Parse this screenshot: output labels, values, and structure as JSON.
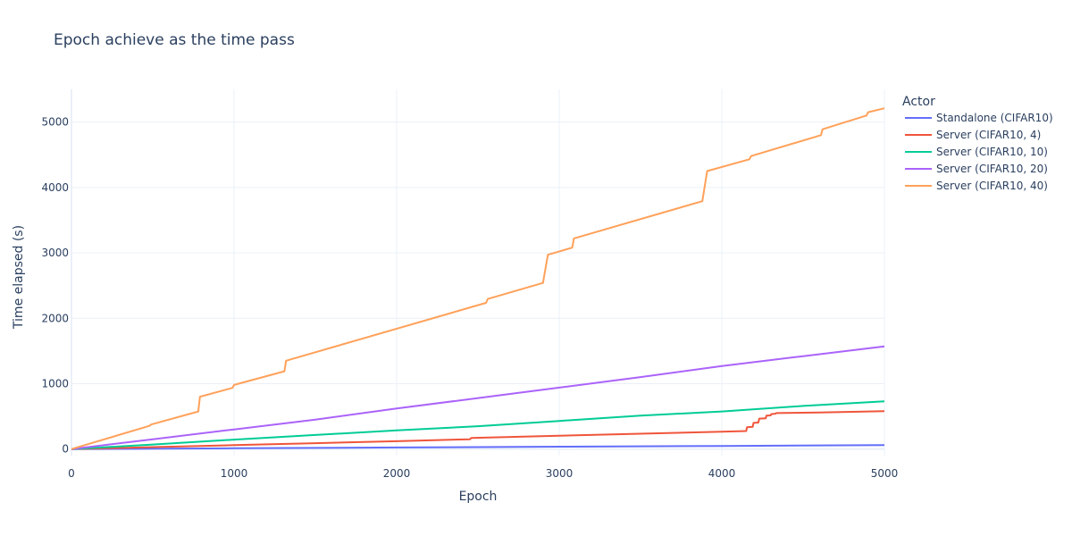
{
  "chart_data": {
    "type": "line",
    "title": "Epoch achieve as the time pass",
    "xlabel": "Epoch",
    "ylabel": "Time elapsed (s)",
    "xlim": [
      0,
      5000
    ],
    "ylim": [
      -100,
      5500
    ],
    "x_ticks": [
      0,
      1000,
      2000,
      3000,
      4000,
      5000
    ],
    "y_ticks": [
      0,
      1000,
      2000,
      3000,
      4000,
      5000
    ],
    "grid": true,
    "legend": {
      "title": "Actor",
      "placement": "right"
    },
    "series": [
      {
        "name": "Standalone (CIFAR10)",
        "color": "#636efa",
        "x": [
          0,
          1000,
          2000,
          3000,
          4000,
          5000
        ],
        "y": [
          0,
          12,
          24,
          36,
          48,
          60
        ]
      },
      {
        "name": "Server (CIFAR10, 4)",
        "color": "#EF553B",
        "x": [
          0,
          500,
          1000,
          1500,
          2000,
          2450,
          2460,
          3000,
          3500,
          4000,
          4150,
          4155,
          4190,
          4195,
          4225,
          4230,
          4270,
          4275,
          4300,
          4305,
          4330,
          4335,
          4600,
          5000
        ],
        "y": [
          0,
          30,
          60,
          90,
          120,
          150,
          170,
          205,
          235,
          265,
          275,
          335,
          340,
          400,
          405,
          465,
          470,
          510,
          515,
          535,
          540,
          550,
          560,
          580
        ]
      },
      {
        "name": "Server (CIFAR10, 10)",
        "color": "#00cc96",
        "x": [
          0,
          500,
          1000,
          1500,
          2000,
          2500,
          3000,
          3500,
          4000,
          4500,
          5000
        ],
        "y": [
          0,
          70,
          145,
          215,
          285,
          350,
          430,
          510,
          575,
          660,
          730
        ]
      },
      {
        "name": "Server (CIFAR10, 20)",
        "color": "#ab63fa",
        "x": [
          0,
          500,
          1000,
          1500,
          2000,
          2500,
          3000,
          3500,
          4000,
          4500,
          5000
        ],
        "y": [
          0,
          150,
          300,
          450,
          620,
          780,
          940,
          1100,
          1270,
          1420,
          1570
        ]
      },
      {
        "name": "Server (CIFAR10, 40)",
        "color": "#FFA15A",
        "x": [
          0,
          480,
          490,
          780,
          790,
          990,
          1000,
          1310,
          1320,
          2550,
          2560,
          2900,
          2930,
          3080,
          3090,
          3880,
          3910,
          4170,
          4180,
          4610,
          4620,
          4890,
          4900,
          5000
        ],
        "y": [
          0,
          355,
          375,
          575,
          800,
          935,
          980,
          1190,
          1350,
          2235,
          2295,
          2540,
          2970,
          3080,
          3220,
          3790,
          4250,
          4430,
          4480,
          4800,
          4890,
          5100,
          5150,
          5210
        ]
      }
    ]
  }
}
